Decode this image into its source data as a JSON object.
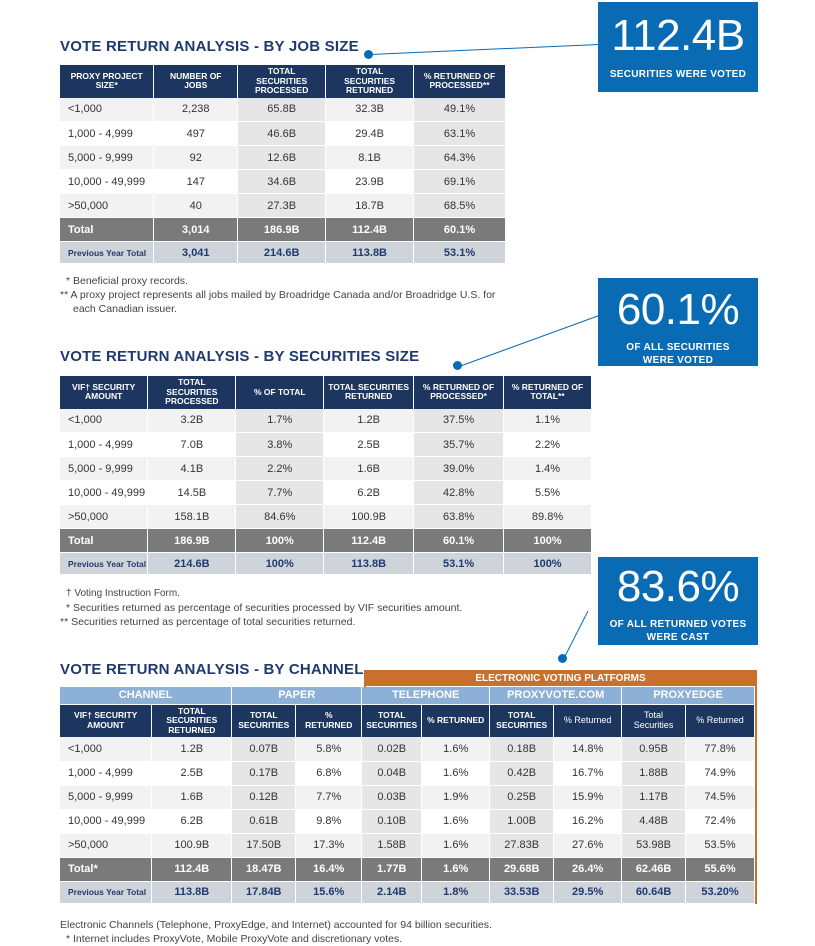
{
  "callouts": [
    {
      "big": "112.4B",
      "small": "SECURITIES WERE VOTED"
    },
    {
      "big": "60.1%",
      "small": "OF ALL SECURITIES WERE VOTED"
    },
    {
      "big": "83.6%",
      "small": "OF ALL RETURNED VOTES WERE CAST ELECTRONICALLY"
    }
  ],
  "job_size": {
    "title": "VOTE RETURN ANALYSIS - BY JOB SIZE",
    "headers": [
      "PROXY PROJECT SIZE*",
      "NUMBER OF JOBS",
      "TOTAL SECURITIES PROCESSED",
      "TOTAL SECURITIES RETURNED",
      "% RETURNED OF PROCESSED**"
    ],
    "rows": [
      [
        "<1,000",
        "2,238",
        "65.8B",
        "32.3B",
        "49.1%"
      ],
      [
        "1,000 - 4,999",
        "497",
        "46.6B",
        "29.4B",
        "63.1%"
      ],
      [
        "5,000 - 9,999",
        "92",
        "12.6B",
        "8.1B",
        "64.3%"
      ],
      [
        "10,000 - 49,999",
        "147",
        "34.6B",
        "23.9B",
        "69.1%"
      ],
      [
        ">50,000",
        "40",
        "27.3B",
        "18.7B",
        "68.5%"
      ]
    ],
    "total": [
      "Total",
      "3,014",
      "186.9B",
      "112.4B",
      "60.1%"
    ],
    "prev": [
      "Previous Year Total",
      "3,041",
      "214.6B",
      "113.8B",
      "53.1%"
    ],
    "notes": [
      "* Beneficial proxy records.",
      "** A proxy project represents all jobs mailed by Broadridge Canada and/or Broadridge U.S. for",
      "each Canadian issuer."
    ]
  },
  "sec_size": {
    "title": "VOTE RETURN ANALYSIS - BY SECURITIES SIZE",
    "headers": [
      "VIF† SECURITY AMOUNT",
      "TOTAL SECURITIES PROCESSED",
      "% OF TOTAL",
      "TOTAL SECURITIES RETURNED",
      "% RETURNED OF PROCESSED*",
      "% RETURNED OF TOTAL**"
    ],
    "rows": [
      [
        "<1,000",
        "3.2B",
        "1.7%",
        "1.2B",
        "37.5%",
        "1.1%"
      ],
      [
        "1,000 - 4,999",
        "7.0B",
        "3.8%",
        "2.5B",
        "35.7%",
        "2.2%"
      ],
      [
        "5,000 - 9,999",
        "4.1B",
        "2.2%",
        "1.6B",
        "39.0%",
        "1.4%"
      ],
      [
        "10,000 - 49,999",
        "14.5B",
        "7.7%",
        "6.2B",
        "42.8%",
        "5.5%"
      ],
      [
        ">50,000",
        "158.1B",
        "84.6%",
        "100.9B",
        "63.8%",
        "89.8%"
      ]
    ],
    "total": [
      "Total",
      "186.9B",
      "100%",
      "112.4B",
      "60.1%",
      "100%"
    ],
    "prev": [
      "Previous Year Total",
      "214.6B",
      "100%",
      "113.8B",
      "53.1%",
      "100%"
    ],
    "notes": [
      "† Voting Instruction Form.",
      "* Securities returned as percentage of securities processed by VIF securities amount.",
      "** Securities returned as percentage of total securities returned."
    ]
  },
  "channel": {
    "title": "VOTE RETURN ANALYSIS - BY CHANNEL",
    "electronic_header": "ELECTRONIC VOTING PLATFORMS",
    "groups": [
      "CHANNEL",
      "PAPER",
      "TELEPHONE",
      "PROXYVOTE.COM",
      "PROXYEDGE"
    ],
    "headers": [
      "VIF† SECURITY AMOUNT",
      "TOTAL SECURITIES RETURNED",
      "TOTAL SECURITIES",
      "% RETURNED",
      "TOTAL SECURITIES",
      "% RETURNED",
      "TOTAL SECURITIES",
      "% Returned",
      "Total Securities",
      "% Returned"
    ],
    "rows": [
      [
        "<1,000",
        "1.2B",
        "0.07B",
        "5.8%",
        "0.02B",
        "1.6%",
        "0.18B",
        "14.8%",
        "0.95B",
        "77.8%"
      ],
      [
        "1,000 - 4,999",
        "2.5B",
        "0.17B",
        "6.8%",
        "0.04B",
        "1.6%",
        "0.42B",
        "16.7%",
        "1.88B",
        "74.9%"
      ],
      [
        "5,000 - 9,999",
        "1.6B",
        "0.12B",
        "7.7%",
        "0.03B",
        "1.9%",
        "0.25B",
        "15.9%",
        "1.17B",
        "74.5%"
      ],
      [
        "10,000 - 49,999",
        "6.2B",
        "0.61B",
        "9.8%",
        "0.10B",
        "1.6%",
        "1.00B",
        "16.2%",
        "4.48B",
        "72.4%"
      ],
      [
        ">50,000",
        "100.9B",
        "17.50B",
        "17.3%",
        "1.58B",
        "1.6%",
        "27.83B",
        "27.6%",
        "53.98B",
        "53.5%"
      ]
    ],
    "total": [
      "Total*",
      "112.4B",
      "18.47B",
      "16.4%",
      "1.77B",
      "1.6%",
      "29.68B",
      "26.4%",
      "62.46B",
      "55.6%"
    ],
    "prev": [
      "Previous Year Total",
      "113.8B",
      "17.84B",
      "15.6%",
      "2.14B",
      "1.8%",
      "33.53B",
      "29.5%",
      "60.64B",
      "53.20%"
    ],
    "notes": [
      "Electronic Channels (Telephone, ProxyEdge, and Internet) accounted for 94 billion securities.",
      "* Internet includes ProxyVote, Mobile ProxyVote and discretionary votes."
    ]
  }
}
